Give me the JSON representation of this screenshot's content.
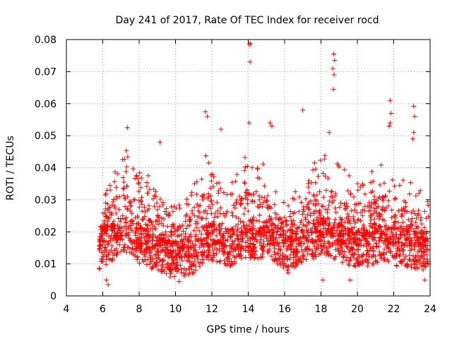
{
  "chart_data": {
    "type": "scatter",
    "title": "Day 241 of 2017, Rate Of TEC Index for receiver rocd",
    "xlabel": "GPS time / hours",
    "ylabel": "ROTI / TECUs",
    "xlim": [
      4,
      24
    ],
    "ylim": [
      0,
      0.08
    ],
    "xticks": [
      4,
      6,
      8,
      10,
      12,
      14,
      16,
      18,
      20,
      22,
      24
    ],
    "xtick_labels": [
      "4",
      "6",
      "8",
      "10",
      "12",
      "14",
      "16",
      "18",
      "20",
      "22",
      "24"
    ],
    "yticks": [
      0,
      0.01,
      0.02,
      0.03,
      0.04,
      0.05,
      0.06,
      0.07,
      0.08
    ],
    "ytick_labels": [
      "0",
      "0.01",
      "0.02",
      "0.03",
      "0.04",
      "0.05",
      "0.06",
      "0.07",
      "0.08"
    ],
    "grid": true,
    "marker": "+",
    "color": "#ff0000",
    "series": [
      {
        "name": "ROTI",
        "x_start": 5.8,
        "x_end": 23.9,
        "envelope": [
          {
            "x": 5.8,
            "base": 0.014,
            "peak": 0.024
          },
          {
            "x": 6.3,
            "base": 0.016,
            "peak": 0.035
          },
          {
            "x": 6.8,
            "base": 0.018,
            "peak": 0.04
          },
          {
            "x": 7.2,
            "base": 0.02,
            "peak": 0.048
          },
          {
            "x": 7.8,
            "base": 0.017,
            "peak": 0.038
          },
          {
            "x": 8.3,
            "base": 0.015,
            "peak": 0.04
          },
          {
            "x": 9.0,
            "base": 0.013,
            "peak": 0.035
          },
          {
            "x": 9.5,
            "base": 0.012,
            "peak": 0.03
          },
          {
            "x": 10.0,
            "base": 0.011,
            "peak": 0.028
          },
          {
            "x": 10.5,
            "base": 0.012,
            "peak": 0.03
          },
          {
            "x": 11.0,
            "base": 0.013,
            "peak": 0.036
          },
          {
            "x": 11.6,
            "base": 0.016,
            "peak": 0.045
          },
          {
            "x": 12.0,
            "base": 0.017,
            "peak": 0.04
          },
          {
            "x": 12.5,
            "base": 0.016,
            "peak": 0.038
          },
          {
            "x": 13.0,
            "base": 0.015,
            "peak": 0.036
          },
          {
            "x": 13.5,
            "base": 0.017,
            "peak": 0.04
          },
          {
            "x": 14.0,
            "base": 0.018,
            "peak": 0.045
          },
          {
            "x": 14.6,
            "base": 0.017,
            "peak": 0.043
          },
          {
            "x": 15.2,
            "base": 0.018,
            "peak": 0.045
          },
          {
            "x": 15.8,
            "base": 0.014,
            "peak": 0.03
          },
          {
            "x": 16.2,
            "base": 0.013,
            "peak": 0.032
          },
          {
            "x": 16.8,
            "base": 0.016,
            "peak": 0.035
          },
          {
            "x": 17.4,
            "base": 0.017,
            "peak": 0.04
          },
          {
            "x": 18.0,
            "base": 0.019,
            "peak": 0.045
          },
          {
            "x": 18.6,
            "base": 0.018,
            "peak": 0.043
          },
          {
            "x": 19.2,
            "base": 0.016,
            "peak": 0.04
          },
          {
            "x": 19.8,
            "base": 0.015,
            "peak": 0.038
          },
          {
            "x": 20.4,
            "base": 0.015,
            "peak": 0.038
          },
          {
            "x": 21.0,
            "base": 0.016,
            "peak": 0.04
          },
          {
            "x": 21.6,
            "base": 0.017,
            "peak": 0.042
          },
          {
            "x": 22.2,
            "base": 0.015,
            "peak": 0.035
          },
          {
            "x": 22.8,
            "base": 0.015,
            "peak": 0.038
          },
          {
            "x": 23.3,
            "base": 0.014,
            "peak": 0.034
          },
          {
            "x": 23.9,
            "base": 0.013,
            "peak": 0.03
          }
        ],
        "outliers": [
          {
            "x": 7.35,
            "y": 0.0525
          },
          {
            "x": 9.15,
            "y": 0.048
          },
          {
            "x": 11.65,
            "y": 0.0575
          },
          {
            "x": 11.75,
            "y": 0.056
          },
          {
            "x": 12.5,
            "y": 0.052
          },
          {
            "x": 14.05,
            "y": 0.0785
          },
          {
            "x": 14.12,
            "y": 0.0787
          },
          {
            "x": 14.1,
            "y": 0.073
          },
          {
            "x": 14.05,
            "y": 0.054
          },
          {
            "x": 15.2,
            "y": 0.054
          },
          {
            "x": 15.3,
            "y": 0.053
          },
          {
            "x": 17.0,
            "y": 0.058
          },
          {
            "x": 18.45,
            "y": 0.051
          },
          {
            "x": 18.7,
            "y": 0.0755
          },
          {
            "x": 18.75,
            "y": 0.0735
          },
          {
            "x": 18.65,
            "y": 0.071
          },
          {
            "x": 18.72,
            "y": 0.069
          },
          {
            "x": 18.68,
            "y": 0.0645
          },
          {
            "x": 21.8,
            "y": 0.061
          },
          {
            "x": 21.85,
            "y": 0.057
          },
          {
            "x": 21.8,
            "y": 0.054
          },
          {
            "x": 21.75,
            "y": 0.053
          },
          {
            "x": 23.1,
            "y": 0.0592
          },
          {
            "x": 23.15,
            "y": 0.056
          },
          {
            "x": 23.1,
            "y": 0.051
          },
          {
            "x": 23.05,
            "y": 0.049
          },
          {
            "x": 6.3,
            "y": 0.0035
          },
          {
            "x": 6.2,
            "y": 0.005
          },
          {
            "x": 10.2,
            "y": 0.0045
          },
          {
            "x": 18.1,
            "y": 0.005
          },
          {
            "x": 19.6,
            "y": 0.005
          },
          {
            "x": 23.7,
            "y": 0.005
          }
        ]
      }
    ]
  }
}
